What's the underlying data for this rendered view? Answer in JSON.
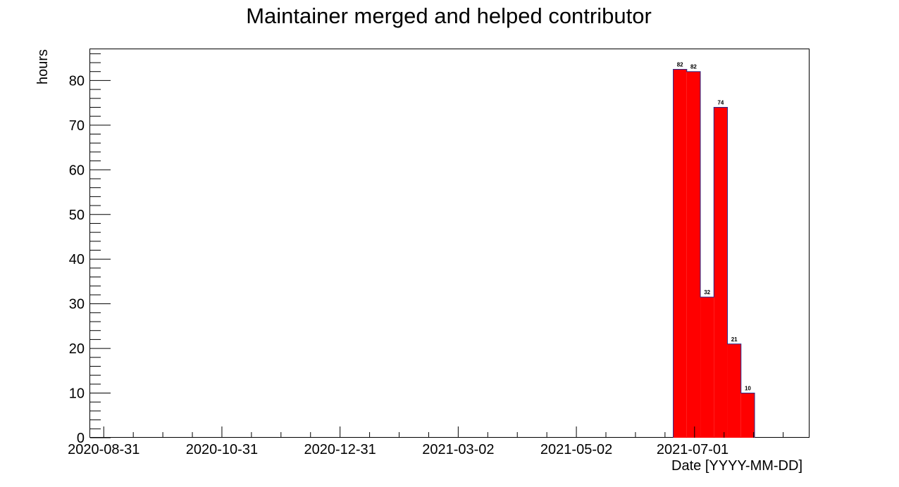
{
  "chart_data": {
    "type": "bar",
    "title": "Maintainer merged and helped contributor",
    "xlabel": "Date [YYYY-MM-DD]",
    "ylabel": "hours",
    "ylim": [
      0,
      87
    ],
    "y_ticks": [
      0,
      10,
      20,
      30,
      40,
      50,
      60,
      70,
      80
    ],
    "x_range": [
      "2020-08-24",
      "2021-08-30"
    ],
    "x_tick_labels": [
      "2020-08-31",
      "2020-10-31",
      "2020-12-31",
      "2021-03-02",
      "2021-05-02",
      "2021-07-01"
    ],
    "bars": [
      {
        "start": "2021-06-21",
        "end": "2021-06-28",
        "value": 82.5,
        "label": "82"
      },
      {
        "start": "2021-06-28",
        "end": "2021-07-05",
        "value": 82.0,
        "label": "82"
      },
      {
        "start": "2021-07-05",
        "end": "2021-07-12",
        "value": 31.5,
        "label": "32"
      },
      {
        "start": "2021-07-12",
        "end": "2021-07-19",
        "value": 74.0,
        "label": "74"
      },
      {
        "start": "2021-07-19",
        "end": "2021-07-26",
        "value": 21.0,
        "label": "21"
      },
      {
        "start": "2021-07-26",
        "end": "2021-08-02",
        "value": 10.0,
        "label": "10"
      }
    ],
    "bar_color": "#ff0000",
    "bar_edge_color": "#2a2a8a",
    "grid": false,
    "legend": "none"
  }
}
